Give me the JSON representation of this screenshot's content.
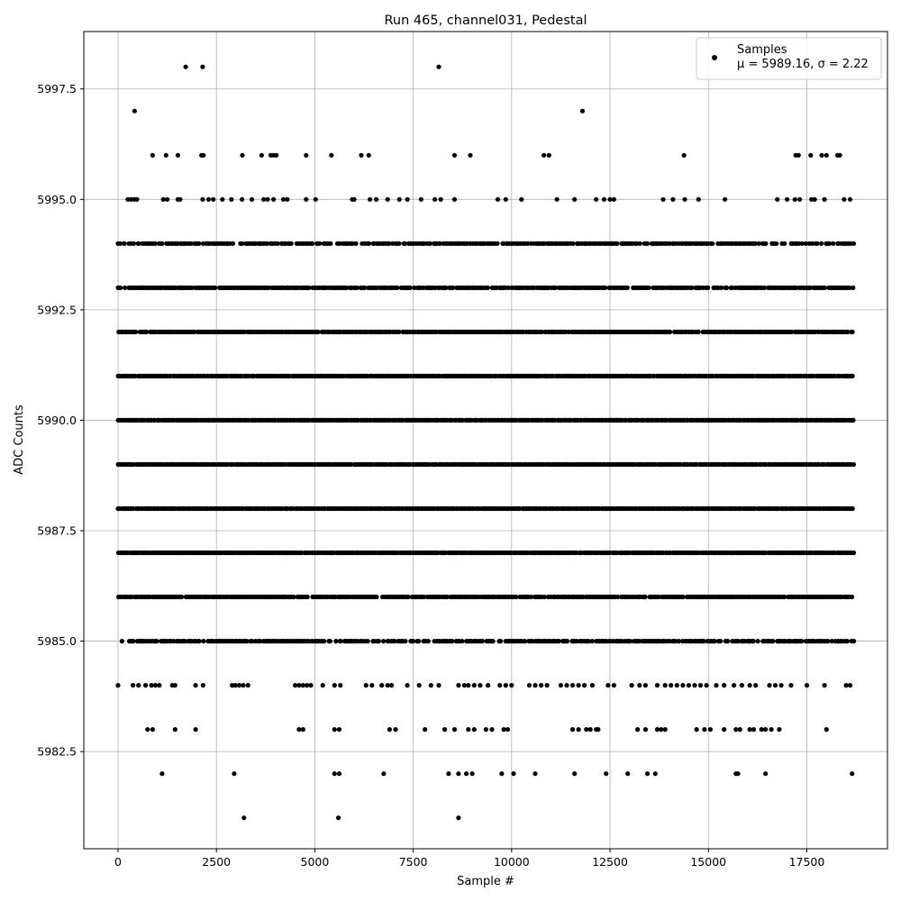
{
  "chart_data": {
    "type": "scatter",
    "title": "Run 465, channel031, Pedestal",
    "xlabel": "Sample #",
    "ylabel": "ADC Counts",
    "xlim": [
      -870,
      19550
    ],
    "ylim": [
      5980.3,
      5998.8
    ],
    "xticks": [
      0,
      2500,
      5000,
      7500,
      10000,
      12500,
      15000,
      17500
    ],
    "yticks": [
      5982.5,
      5985.0,
      5987.5,
      5990.0,
      5992.5,
      5995.0,
      5997.5
    ],
    "xtick_labels": [
      "0",
      "2500",
      "5000",
      "7500",
      "10000",
      "12500",
      "15000",
      "17500"
    ],
    "ytick_labels": [
      "5982.5",
      "5985.0",
      "5987.5",
      "5990.0",
      "5992.5",
      "5995.0",
      "5997.5"
    ],
    "grid": true,
    "legend": {
      "placement": "top-right",
      "label": "Samples",
      "stats": "μ = 5989.16, σ = 2.22"
    },
    "series": [
      {
        "name": "Samples",
        "color": "#000000",
        "n_samples": 18700,
        "level_fill": {
          "5994": 0.8,
          "5993": 0.9,
          "5992": 0.97,
          "5991": 1.0,
          "5990": 1.0,
          "5989": 1.0,
          "5988": 1.0,
          "5987": 1.0,
          "5986": 0.95,
          "5985": 0.8
        },
        "sparse_points": [
          {
            "x": 1720,
            "y": 5998
          },
          {
            "x": 2150,
            "y": 5998
          },
          {
            "x": 8150,
            "y": 5998
          },
          {
            "x": 420,
            "y": 5997
          },
          {
            "x": 11800,
            "y": 5997
          },
          {
            "x": 880,
            "y": 5996
          },
          {
            "x": 1220,
            "y": 5996
          },
          {
            "x": 1520,
            "y": 5996
          },
          {
            "x": 2120,
            "y": 5996
          },
          {
            "x": 2170,
            "y": 5996
          },
          {
            "x": 3160,
            "y": 5996
          },
          {
            "x": 3650,
            "y": 5996
          },
          {
            "x": 3880,
            "y": 5996
          },
          {
            "x": 3950,
            "y": 5996
          },
          {
            "x": 4020,
            "y": 5996
          },
          {
            "x": 4780,
            "y": 5996
          },
          {
            "x": 5420,
            "y": 5996
          },
          {
            "x": 6180,
            "y": 5996
          },
          {
            "x": 6370,
            "y": 5996
          },
          {
            "x": 8550,
            "y": 5996
          },
          {
            "x": 8950,
            "y": 5996
          },
          {
            "x": 10820,
            "y": 5996
          },
          {
            "x": 10950,
            "y": 5996
          },
          {
            "x": 14380,
            "y": 5996
          },
          {
            "x": 17220,
            "y": 5996
          },
          {
            "x": 17290,
            "y": 5996
          },
          {
            "x": 17600,
            "y": 5996
          },
          {
            "x": 17880,
            "y": 5996
          },
          {
            "x": 18000,
            "y": 5996
          },
          {
            "x": 18280,
            "y": 5996
          },
          {
            "x": 18340,
            "y": 5996
          },
          {
            "x": 250,
            "y": 5995
          },
          {
            "x": 330,
            "y": 5995
          },
          {
            "x": 410,
            "y": 5995
          },
          {
            "x": 480,
            "y": 5995
          },
          {
            "x": 1150,
            "y": 5995
          },
          {
            "x": 1250,
            "y": 5995
          },
          {
            "x": 1520,
            "y": 5995
          },
          {
            "x": 1580,
            "y": 5995
          },
          {
            "x": 2150,
            "y": 5995
          },
          {
            "x": 2300,
            "y": 5995
          },
          {
            "x": 2420,
            "y": 5995
          },
          {
            "x": 2650,
            "y": 5995
          },
          {
            "x": 2880,
            "y": 5995
          },
          {
            "x": 3150,
            "y": 5995
          },
          {
            "x": 3400,
            "y": 5995
          },
          {
            "x": 3700,
            "y": 5995
          },
          {
            "x": 3800,
            "y": 5995
          },
          {
            "x": 3950,
            "y": 5995
          },
          {
            "x": 4200,
            "y": 5995
          },
          {
            "x": 4300,
            "y": 5995
          },
          {
            "x": 4780,
            "y": 5995
          },
          {
            "x": 5020,
            "y": 5995
          },
          {
            "x": 5950,
            "y": 5995
          },
          {
            "x": 6000,
            "y": 5995
          },
          {
            "x": 6400,
            "y": 5995
          },
          {
            "x": 6560,
            "y": 5995
          },
          {
            "x": 6850,
            "y": 5995
          },
          {
            "x": 7150,
            "y": 5995
          },
          {
            "x": 7350,
            "y": 5995
          },
          {
            "x": 7700,
            "y": 5995
          },
          {
            "x": 8050,
            "y": 5995
          },
          {
            "x": 8200,
            "y": 5995
          },
          {
            "x": 8550,
            "y": 5995
          },
          {
            "x": 9650,
            "y": 5995
          },
          {
            "x": 9850,
            "y": 5995
          },
          {
            "x": 10250,
            "y": 5995
          },
          {
            "x": 11150,
            "y": 5995
          },
          {
            "x": 11600,
            "y": 5995
          },
          {
            "x": 12150,
            "y": 5995
          },
          {
            "x": 12350,
            "y": 5995
          },
          {
            "x": 12500,
            "y": 5995
          },
          {
            "x": 12600,
            "y": 5995
          },
          {
            "x": 13850,
            "y": 5995
          },
          {
            "x": 14100,
            "y": 5995
          },
          {
            "x": 14400,
            "y": 5995
          },
          {
            "x": 14750,
            "y": 5995
          },
          {
            "x": 15420,
            "y": 5995
          },
          {
            "x": 16750,
            "y": 5995
          },
          {
            "x": 17000,
            "y": 5995
          },
          {
            "x": 17200,
            "y": 5995
          },
          {
            "x": 17320,
            "y": 5995
          },
          {
            "x": 17620,
            "y": 5995
          },
          {
            "x": 17700,
            "y": 5995
          },
          {
            "x": 17950,
            "y": 5995
          },
          {
            "x": 18450,
            "y": 5995
          },
          {
            "x": 18600,
            "y": 5995
          },
          {
            "x": 0,
            "y": 5984
          },
          {
            "x": 380,
            "y": 5984
          },
          {
            "x": 520,
            "y": 5984
          },
          {
            "x": 700,
            "y": 5984
          },
          {
            "x": 850,
            "y": 5984
          },
          {
            "x": 950,
            "y": 5984
          },
          {
            "x": 1050,
            "y": 5984
          },
          {
            "x": 1380,
            "y": 5984
          },
          {
            "x": 1450,
            "y": 5984
          },
          {
            "x": 1970,
            "y": 5984
          },
          {
            "x": 2160,
            "y": 5984
          },
          {
            "x": 2900,
            "y": 5984
          },
          {
            "x": 2980,
            "y": 5984
          },
          {
            "x": 3080,
            "y": 5984
          },
          {
            "x": 3180,
            "y": 5984
          },
          {
            "x": 3300,
            "y": 5984
          },
          {
            "x": 4500,
            "y": 5984
          },
          {
            "x": 4600,
            "y": 5984
          },
          {
            "x": 4700,
            "y": 5984
          },
          {
            "x": 4800,
            "y": 5984
          },
          {
            "x": 4900,
            "y": 5984
          },
          {
            "x": 5200,
            "y": 5984
          },
          {
            "x": 5500,
            "y": 5984
          },
          {
            "x": 5650,
            "y": 5984
          },
          {
            "x": 6300,
            "y": 5984
          },
          {
            "x": 6450,
            "y": 5984
          },
          {
            "x": 6700,
            "y": 5984
          },
          {
            "x": 6850,
            "y": 5984
          },
          {
            "x": 6950,
            "y": 5984
          },
          {
            "x": 7350,
            "y": 5984
          },
          {
            "x": 7650,
            "y": 5984
          },
          {
            "x": 7950,
            "y": 5984
          },
          {
            "x": 8150,
            "y": 5984
          },
          {
            "x": 8650,
            "y": 5984
          },
          {
            "x": 8800,
            "y": 5984
          },
          {
            "x": 8900,
            "y": 5984
          },
          {
            "x": 9050,
            "y": 5984
          },
          {
            "x": 9200,
            "y": 5984
          },
          {
            "x": 9400,
            "y": 5984
          },
          {
            "x": 9700,
            "y": 5984
          },
          {
            "x": 9850,
            "y": 5984
          },
          {
            "x": 10000,
            "y": 5984
          },
          {
            "x": 10450,
            "y": 5984
          },
          {
            "x": 10600,
            "y": 5984
          },
          {
            "x": 10750,
            "y": 5984
          },
          {
            "x": 10900,
            "y": 5984
          },
          {
            "x": 11250,
            "y": 5984
          },
          {
            "x": 11400,
            "y": 5984
          },
          {
            "x": 11550,
            "y": 5984
          },
          {
            "x": 11700,
            "y": 5984
          },
          {
            "x": 11850,
            "y": 5984
          },
          {
            "x": 12050,
            "y": 5984
          },
          {
            "x": 12450,
            "y": 5984
          },
          {
            "x": 12600,
            "y": 5984
          },
          {
            "x": 13050,
            "y": 5984
          },
          {
            "x": 13250,
            "y": 5984
          },
          {
            "x": 13400,
            "y": 5984
          },
          {
            "x": 13700,
            "y": 5984
          },
          {
            "x": 13900,
            "y": 5984
          },
          {
            "x": 14050,
            "y": 5984
          },
          {
            "x": 14200,
            "y": 5984
          },
          {
            "x": 14350,
            "y": 5984
          },
          {
            "x": 14500,
            "y": 5984
          },
          {
            "x": 14650,
            "y": 5984
          },
          {
            "x": 14800,
            "y": 5984
          },
          {
            "x": 14950,
            "y": 5984
          },
          {
            "x": 15200,
            "y": 5984
          },
          {
            "x": 15400,
            "y": 5984
          },
          {
            "x": 15650,
            "y": 5984
          },
          {
            "x": 15850,
            "y": 5984
          },
          {
            "x": 16050,
            "y": 5984
          },
          {
            "x": 16200,
            "y": 5984
          },
          {
            "x": 16550,
            "y": 5984
          },
          {
            "x": 16700,
            "y": 5984
          },
          {
            "x": 16850,
            "y": 5984
          },
          {
            "x": 17100,
            "y": 5984
          },
          {
            "x": 17500,
            "y": 5984
          },
          {
            "x": 17950,
            "y": 5984
          },
          {
            "x": 18500,
            "y": 5984
          },
          {
            "x": 18600,
            "y": 5984
          },
          {
            "x": 750,
            "y": 5983
          },
          {
            "x": 880,
            "y": 5983
          },
          {
            "x": 1450,
            "y": 5983
          },
          {
            "x": 1970,
            "y": 5983
          },
          {
            "x": 4600,
            "y": 5983
          },
          {
            "x": 4700,
            "y": 5983
          },
          {
            "x": 5500,
            "y": 5983
          },
          {
            "x": 5620,
            "y": 5983
          },
          {
            "x": 6900,
            "y": 5983
          },
          {
            "x": 7050,
            "y": 5983
          },
          {
            "x": 7800,
            "y": 5983
          },
          {
            "x": 8300,
            "y": 5983
          },
          {
            "x": 8550,
            "y": 5983
          },
          {
            "x": 8900,
            "y": 5983
          },
          {
            "x": 9050,
            "y": 5983
          },
          {
            "x": 9350,
            "y": 5983
          },
          {
            "x": 9500,
            "y": 5983
          },
          {
            "x": 9800,
            "y": 5983
          },
          {
            "x": 9900,
            "y": 5983
          },
          {
            "x": 11550,
            "y": 5983
          },
          {
            "x": 11700,
            "y": 5983
          },
          {
            "x": 11900,
            "y": 5983
          },
          {
            "x": 12000,
            "y": 5983
          },
          {
            "x": 12150,
            "y": 5983
          },
          {
            "x": 12200,
            "y": 5983
          },
          {
            "x": 13200,
            "y": 5983
          },
          {
            "x": 13400,
            "y": 5983
          },
          {
            "x": 13700,
            "y": 5983
          },
          {
            "x": 13800,
            "y": 5983
          },
          {
            "x": 13900,
            "y": 5983
          },
          {
            "x": 14700,
            "y": 5983
          },
          {
            "x": 14900,
            "y": 5983
          },
          {
            "x": 15050,
            "y": 5983
          },
          {
            "x": 15400,
            "y": 5983
          },
          {
            "x": 15700,
            "y": 5983
          },
          {
            "x": 15800,
            "y": 5983
          },
          {
            "x": 16050,
            "y": 5983
          },
          {
            "x": 16150,
            "y": 5983
          },
          {
            "x": 16350,
            "y": 5983
          },
          {
            "x": 16450,
            "y": 5983
          },
          {
            "x": 16600,
            "y": 5983
          },
          {
            "x": 16800,
            "y": 5983
          },
          {
            "x": 18000,
            "y": 5983
          },
          {
            "x": 1120,
            "y": 5982
          },
          {
            "x": 2950,
            "y": 5982
          },
          {
            "x": 5500,
            "y": 5982
          },
          {
            "x": 5620,
            "y": 5982
          },
          {
            "x": 6750,
            "y": 5982
          },
          {
            "x": 8400,
            "y": 5982
          },
          {
            "x": 8650,
            "y": 5982
          },
          {
            "x": 8850,
            "y": 5982
          },
          {
            "x": 9000,
            "y": 5982
          },
          {
            "x": 9750,
            "y": 5982
          },
          {
            "x": 10050,
            "y": 5982
          },
          {
            "x": 10600,
            "y": 5982
          },
          {
            "x": 11600,
            "y": 5982
          },
          {
            "x": 12400,
            "y": 5982
          },
          {
            "x": 12950,
            "y": 5982
          },
          {
            "x": 13450,
            "y": 5982
          },
          {
            "x": 13650,
            "y": 5982
          },
          {
            "x": 15700,
            "y": 5982
          },
          {
            "x": 15750,
            "y": 5982
          },
          {
            "x": 16450,
            "y": 5982
          },
          {
            "x": 18650,
            "y": 5982
          },
          {
            "x": 3200,
            "y": 5981
          },
          {
            "x": 5600,
            "y": 5981
          },
          {
            "x": 8650,
            "y": 5981
          }
        ]
      }
    ]
  }
}
